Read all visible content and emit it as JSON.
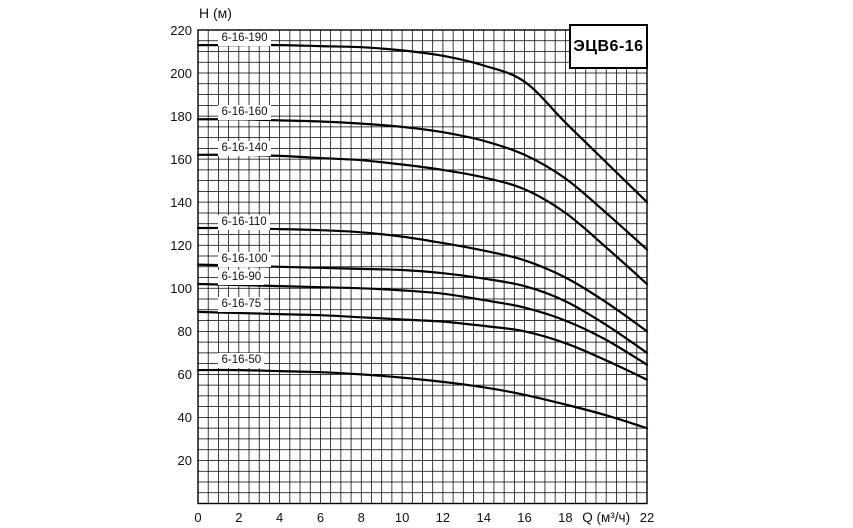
{
  "title_box": {
    "label": "ЭЦВ6-16"
  },
  "axes": {
    "y_axis_title": "H (м)",
    "x_axis_title": "Q (м³/ч)"
  },
  "colors": {
    "background": "#ffffff",
    "grid": "#000000",
    "curve": "#000000",
    "text": "#000000"
  },
  "chart_data": {
    "type": "line",
    "title": "ЭЦВ6-16",
    "xlabel": "Q (м³/ч)",
    "ylabel": "H (м)",
    "xlim": [
      0,
      22
    ],
    "ylim": [
      0,
      220
    ],
    "grid": true,
    "x_minor_grid_step": 0.5,
    "y_minor_grid_step": 5,
    "x_tick_step": 2,
    "y_tick_step": 20,
    "x_tick_values_shown": [
      0,
      2,
      4,
      6,
      8,
      10,
      12,
      14,
      16,
      18,
      22
    ],
    "x_axis_title_at_x": 20,
    "y_tick_values_shown": [
      20,
      40,
      60,
      80,
      100,
      120,
      140,
      160,
      180,
      200,
      220
    ],
    "legend_position": "inline-curve-labels",
    "x": [
      0,
      2,
      4,
      6,
      8,
      10,
      12,
      14,
      16,
      18,
      20,
      22
    ],
    "series": [
      {
        "name": "6-16-190",
        "values": [
          213,
          213,
          213,
          212.5,
          212,
          210.5,
          208,
          203.5,
          196,
          177,
          158.5,
          140
        ],
        "label_anchor": {
          "x": 1.15,
          "y": 216
        }
      },
      {
        "name": "6-16-160",
        "values": [
          178.5,
          178.5,
          178,
          177.5,
          176.5,
          175,
          172.5,
          168.5,
          162,
          151,
          135,
          118
        ],
        "label_anchor": {
          "x": 1.15,
          "y": 181.5
        }
      },
      {
        "name": "6-16-140",
        "values": [
          162,
          162,
          161.5,
          160.5,
          159.5,
          157.5,
          155,
          151.5,
          146,
          135,
          119,
          102
        ],
        "label_anchor": {
          "x": 1.15,
          "y": 165
        }
      },
      {
        "name": "6-16-110",
        "values": [
          128,
          128,
          127.5,
          127,
          126,
          124,
          121,
          117.5,
          113,
          105,
          93.5,
          80
        ],
        "label_anchor": {
          "x": 1.15,
          "y": 130.5
        }
      },
      {
        "name": "6-16-100",
        "values": [
          111,
          110.5,
          110,
          109.5,
          109,
          108.5,
          107,
          104.5,
          101,
          94,
          83,
          70
        ],
        "label_anchor": {
          "x": 1.15,
          "y": 113.5
        }
      },
      {
        "name": "6-16-90",
        "values": [
          102,
          101.5,
          101,
          100.5,
          100,
          99,
          97.5,
          94.5,
          91,
          85,
          76,
          64.5
        ],
        "label_anchor": {
          "x": 1.15,
          "y": 105
        }
      },
      {
        "name": "6-16-75",
        "values": [
          89,
          88.5,
          88,
          87.5,
          86.5,
          85.5,
          84.5,
          82.5,
          80,
          74.5,
          66.5,
          57.5
        ],
        "label_anchor": {
          "x": 1.15,
          "y": 92.5
        }
      },
      {
        "name": "6-16-50",
        "values": [
          62,
          62,
          61.5,
          61,
          60,
          58.5,
          56.5,
          54,
          50.5,
          46,
          41,
          35
        ],
        "label_anchor": {
          "x": 1.15,
          "y": 66.5
        }
      }
    ]
  }
}
